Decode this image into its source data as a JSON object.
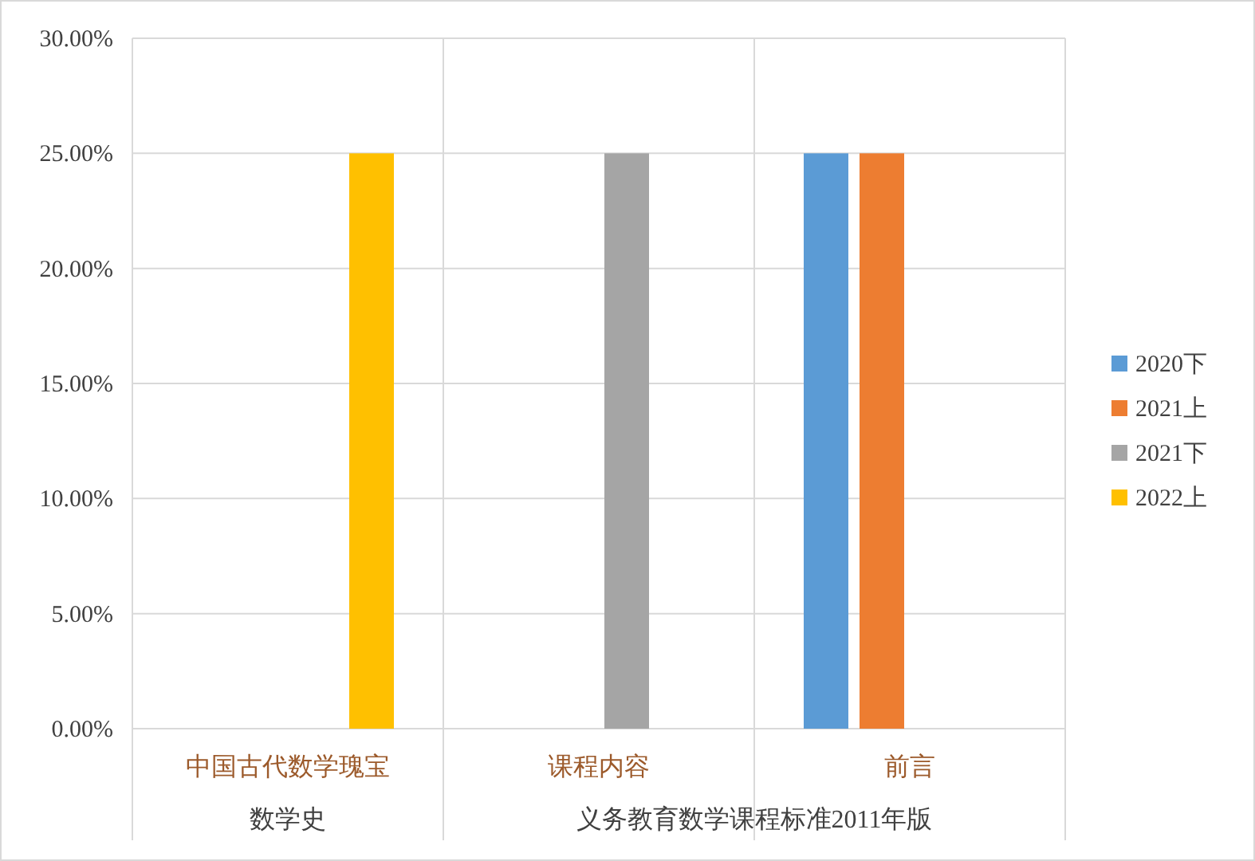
{
  "chart_data": {
    "type": "bar",
    "categories": [
      "中国古代数学瑰宝",
      "课程内容",
      "前言"
    ],
    "series": [
      {
        "name": "2020下",
        "color": "#5b9bd5",
        "values": [
          null,
          null,
          25
        ]
      },
      {
        "name": "2021上",
        "color": "#ed7d31",
        "values": [
          null,
          null,
          25
        ]
      },
      {
        "name": "2021下",
        "color": "#a5a5a5",
        "values": [
          null,
          25,
          null
        ]
      },
      {
        "name": "2022上",
        "color": "#ffc000",
        "values": [
          25,
          null,
          null
        ]
      }
    ],
    "annotations": [
      "数学史",
      "义务教育数学课程标准2011年版"
    ],
    "ylim": [
      0,
      30
    ],
    "yticks": [
      {
        "value": 0,
        "label": "0.00%"
      },
      {
        "value": 5,
        "label": "5.00%"
      },
      {
        "value": 10,
        "label": "10.00%"
      },
      {
        "value": 15,
        "label": "15.00%"
      },
      {
        "value": 20,
        "label": "20.00%"
      },
      {
        "value": 25,
        "label": "25.00%"
      },
      {
        "value": 30,
        "label": "30.00%"
      }
    ],
    "grid": true,
    "legend": "right"
  }
}
